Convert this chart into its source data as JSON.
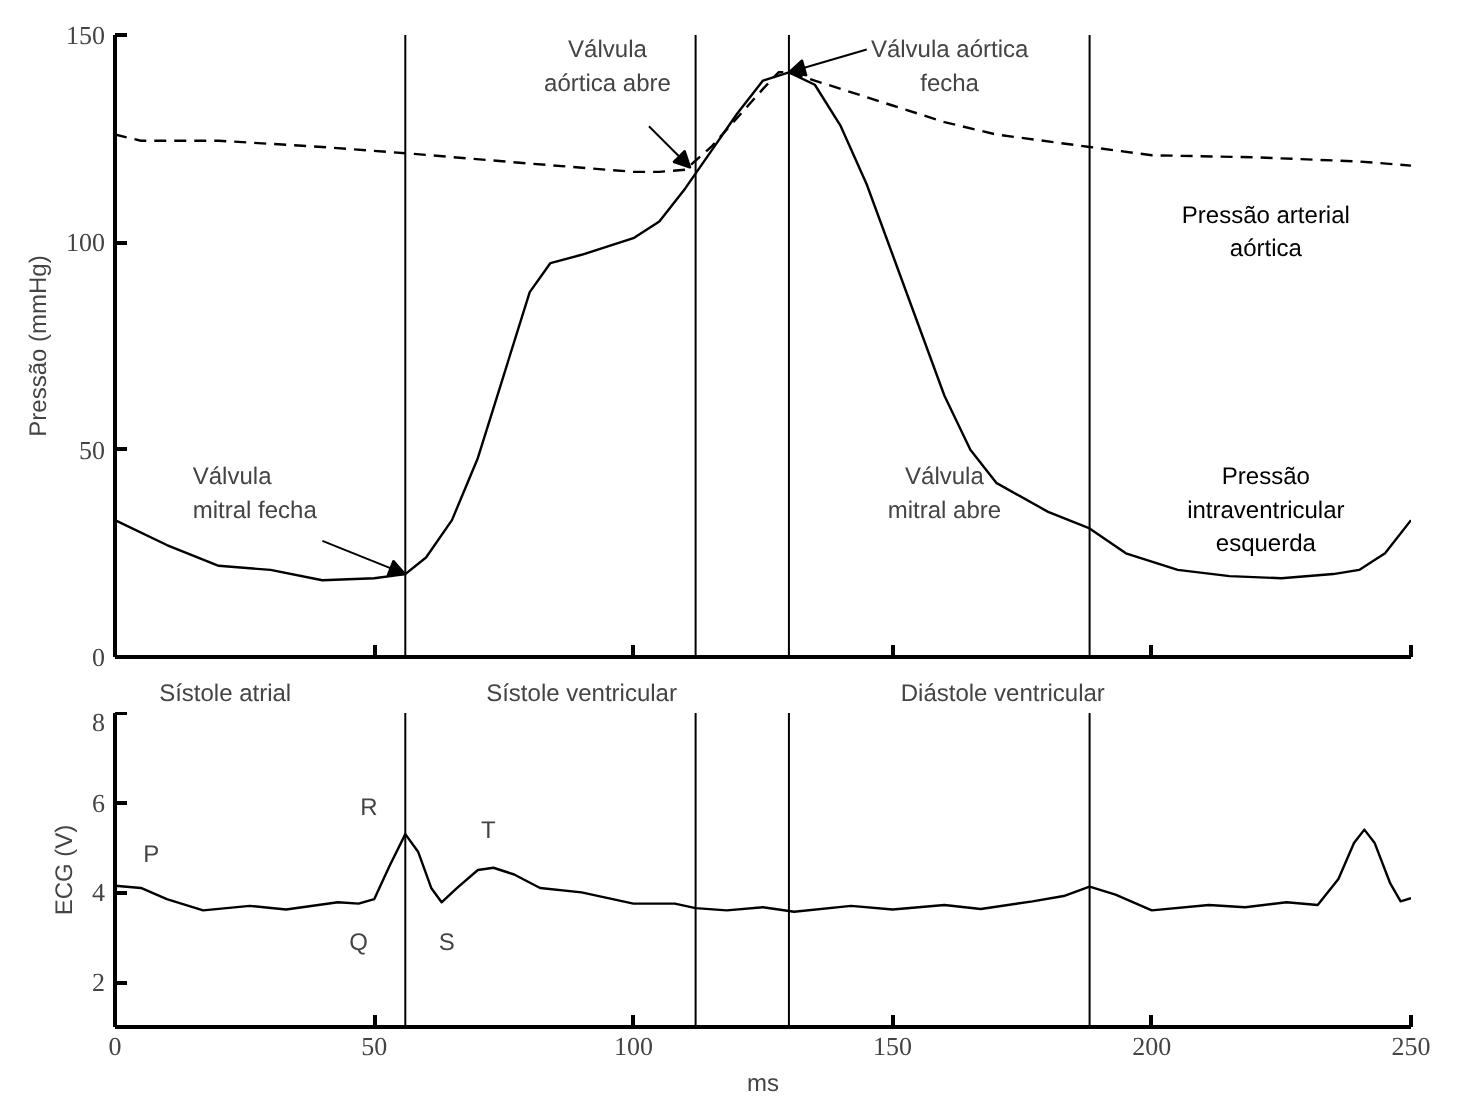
{
  "chart_data": [
    {
      "type": "line",
      "ylabel": "Pressão (mmHg)",
      "xlim": [
        0,
        250
      ],
      "xticks": [
        0,
        50,
        100,
        150,
        200,
        250
      ],
      "ylim": [
        0,
        150
      ],
      "yticks": [
        0,
        50,
        100,
        150
      ],
      "tick_labels": "y",
      "series": [
        {
          "name": "Pressão\nintraventricular\nesquerda",
          "color": "#000000",
          "line_style": "solid",
          "x": [
            0,
            10,
            20,
            30,
            40,
            50,
            56,
            60,
            65,
            70,
            75,
            80,
            84,
            90,
            100,
            105,
            110,
            115,
            120,
            125,
            130,
            135,
            140,
            145,
            150,
            155,
            160,
            165,
            170,
            180,
            188,
            195,
            205,
            215,
            225,
            235,
            240,
            245,
            250
          ],
          "values": [
            33,
            27,
            22,
            21,
            18.5,
            19,
            20,
            24,
            33,
            48,
            68,
            88,
            95,
            97,
            101,
            105,
            113,
            122,
            131,
            139,
            141,
            138,
            128,
            114,
            97,
            80,
            63,
            50,
            42,
            35,
            31,
            25,
            21,
            19.5,
            19,
            20,
            21,
            25,
            33
          ]
        },
        {
          "name": "Pressão arterial\naórtica",
          "color": "#000000",
          "line_style": "dashed",
          "x": [
            0,
            5,
            20,
            40,
            56,
            80,
            100,
            105,
            110,
            115,
            120,
            125,
            128,
            130,
            140,
            150,
            160,
            170,
            188,
            200,
            220,
            240,
            250
          ],
          "values": [
            126,
            124.5,
            124.5,
            123,
            121.5,
            119,
            117,
            117,
            117.5,
            123,
            130,
            137,
            141,
            141,
            137,
            133,
            129,
            126,
            123,
            121,
            120.5,
            119.5,
            118.5
          ]
        }
      ],
      "ref_lines": [
        {
          "axis": "x",
          "value": 56,
          "color": "#000000"
        },
        {
          "axis": "x",
          "value": 112,
          "color": "#000000"
        },
        {
          "axis": "x",
          "value": 130,
          "color": "#000000"
        },
        {
          "axis": "x",
          "value": 188,
          "color": "#000000"
        }
      ],
      "annotations": [
        {
          "text": "Válvula\nmitral fecha",
          "x": 56,
          "y": 20
        },
        {
          "text": "Válvula\naórtica abre",
          "x": 111,
          "y": 118
        },
        {
          "text": "Válvula aórtica\nfecha",
          "x": 130,
          "y": 141
        },
        "Válvula\nmitral abre"
      ]
    },
    {
      "type": "line",
      "xlabel": "ms",
      "ylabel": "ECG (V)",
      "xlim": [
        0,
        250
      ],
      "xticks": [
        0,
        50,
        100,
        150,
        200,
        250
      ],
      "ylim": [
        1,
        8
      ],
      "yticks": [
        2,
        4,
        6,
        8
      ],
      "series": [
        {
          "color": "#000000",
          "x": [
            0,
            5,
            10,
            17,
            26,
            33,
            43,
            47,
            50,
            53,
            56,
            58.5,
            61,
            63,
            66,
            70,
            73,
            77,
            82,
            90,
            100,
            108,
            112,
            118,
            125,
            131,
            142,
            150,
            160,
            167,
            177,
            183,
            188,
            193,
            200,
            211,
            218,
            226,
            232,
            236,
            239,
            241,
            243,
            246,
            248,
            250
          ],
          "values": [
            4.15,
            4.1,
            3.85,
            3.6,
            3.7,
            3.62,
            3.78,
            3.75,
            3.85,
            4.6,
            5.3,
            4.9,
            4.1,
            3.78,
            4.1,
            4.5,
            4.55,
            4.4,
            4.1,
            4.0,
            3.75,
            3.75,
            3.65,
            3.6,
            3.67,
            3.57,
            3.7,
            3.62,
            3.72,
            3.63,
            3.8,
            3.92,
            4.13,
            3.95,
            3.6,
            3.72,
            3.67,
            3.78,
            3.72,
            4.3,
            5.1,
            5.4,
            5.1,
            4.2,
            3.8,
            3.87
          ]
        }
      ],
      "ref_lines": [
        {
          "axis": "x",
          "value": 56,
          "color": "#000000"
        },
        {
          "axis": "x",
          "value": 112,
          "color": "#000000"
        },
        {
          "axis": "x",
          "value": 130,
          "color": "#000000"
        },
        {
          "axis": "x",
          "value": 188,
          "color": "#000000"
        }
      ],
      "annotations": [
        "Sístole atrial",
        "Sístole ventricular",
        "Diástole ventricular",
        "P",
        "R",
        "Q",
        "S",
        "T"
      ]
    }
  ]
}
